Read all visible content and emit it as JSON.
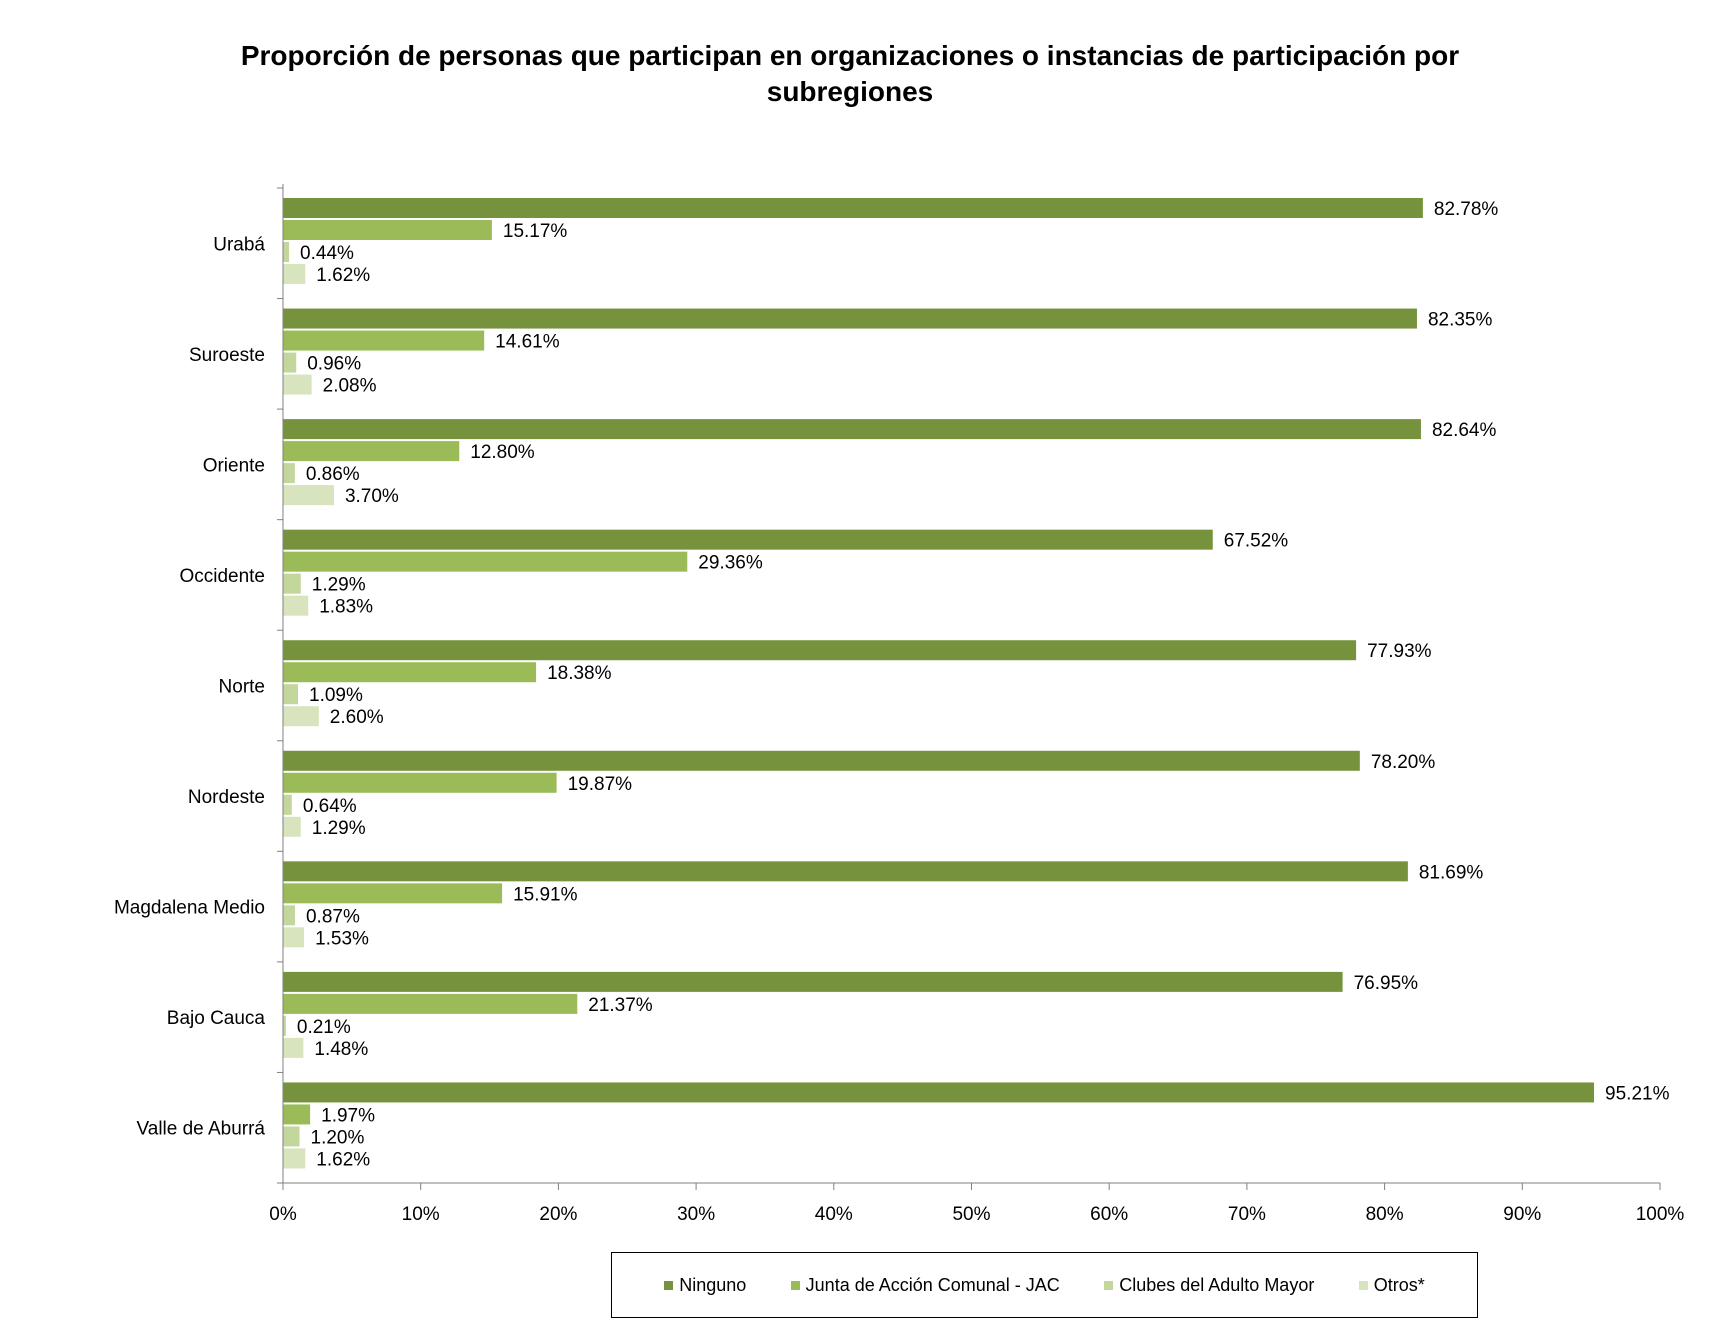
{
  "chart_data": {
    "type": "bar",
    "orientation": "horizontal",
    "title": "Proporción de personas que participan en organizaciones o instancias de participación por subregiones",
    "categories": [
      "Urabá",
      "Suroeste",
      "Oriente",
      "Occidente",
      "Norte",
      "Nordeste",
      "Magdalena Medio",
      "Bajo Cauca",
      "Valle de Aburrá"
    ],
    "series": [
      {
        "name": "Ninguno",
        "color": "#76923c",
        "values": [
          82.78,
          82.35,
          82.64,
          67.52,
          77.93,
          78.2,
          81.69,
          76.95,
          95.21
        ],
        "labels": [
          "82.78%",
          "82.35%",
          "82.64%",
          "67.52%",
          "77.93%",
          "78.20%",
          "81.69%",
          "76.95%",
          "95.21%"
        ]
      },
      {
        "name": "Junta de Acción Comunal - JAC",
        "color": "#9bbb59",
        "values": [
          15.17,
          14.61,
          12.8,
          29.36,
          18.38,
          19.87,
          15.91,
          21.37,
          1.97
        ],
        "labels": [
          "15.17%",
          "14.61%",
          "12.80%",
          "29.36%",
          "18.38%",
          "19.87%",
          "15.91%",
          "21.37%",
          "1.97%"
        ]
      },
      {
        "name": "Clubes del Adulto Mayor",
        "color": "#c3d69b",
        "values": [
          0.44,
          0.96,
          0.86,
          1.29,
          1.09,
          0.64,
          0.87,
          0.21,
          1.2
        ],
        "labels": [
          "0.44%",
          "0.96%",
          "0.86%",
          "1.29%",
          "1.09%",
          "0.64%",
          "0.87%",
          "0.21%",
          "1.20%"
        ]
      },
      {
        "name": "Otros*",
        "color": "#d7e4bd",
        "values": [
          1.62,
          2.08,
          3.7,
          1.83,
          2.6,
          1.29,
          1.53,
          1.48,
          1.62
        ],
        "labels": [
          "1.62%",
          "2.08%",
          "3.70%",
          "1.83%",
          "2.60%",
          "1.29%",
          "1.53%",
          "1.48%",
          "1.62%"
        ]
      }
    ],
    "xlim": [
      0,
      100
    ],
    "x_ticks": [
      "0%",
      "10%",
      "20%",
      "30%",
      "40%",
      "50%",
      "60%",
      "70%",
      "80%",
      "90%",
      "100%"
    ],
    "grid": false,
    "legend_position": "bottom"
  }
}
